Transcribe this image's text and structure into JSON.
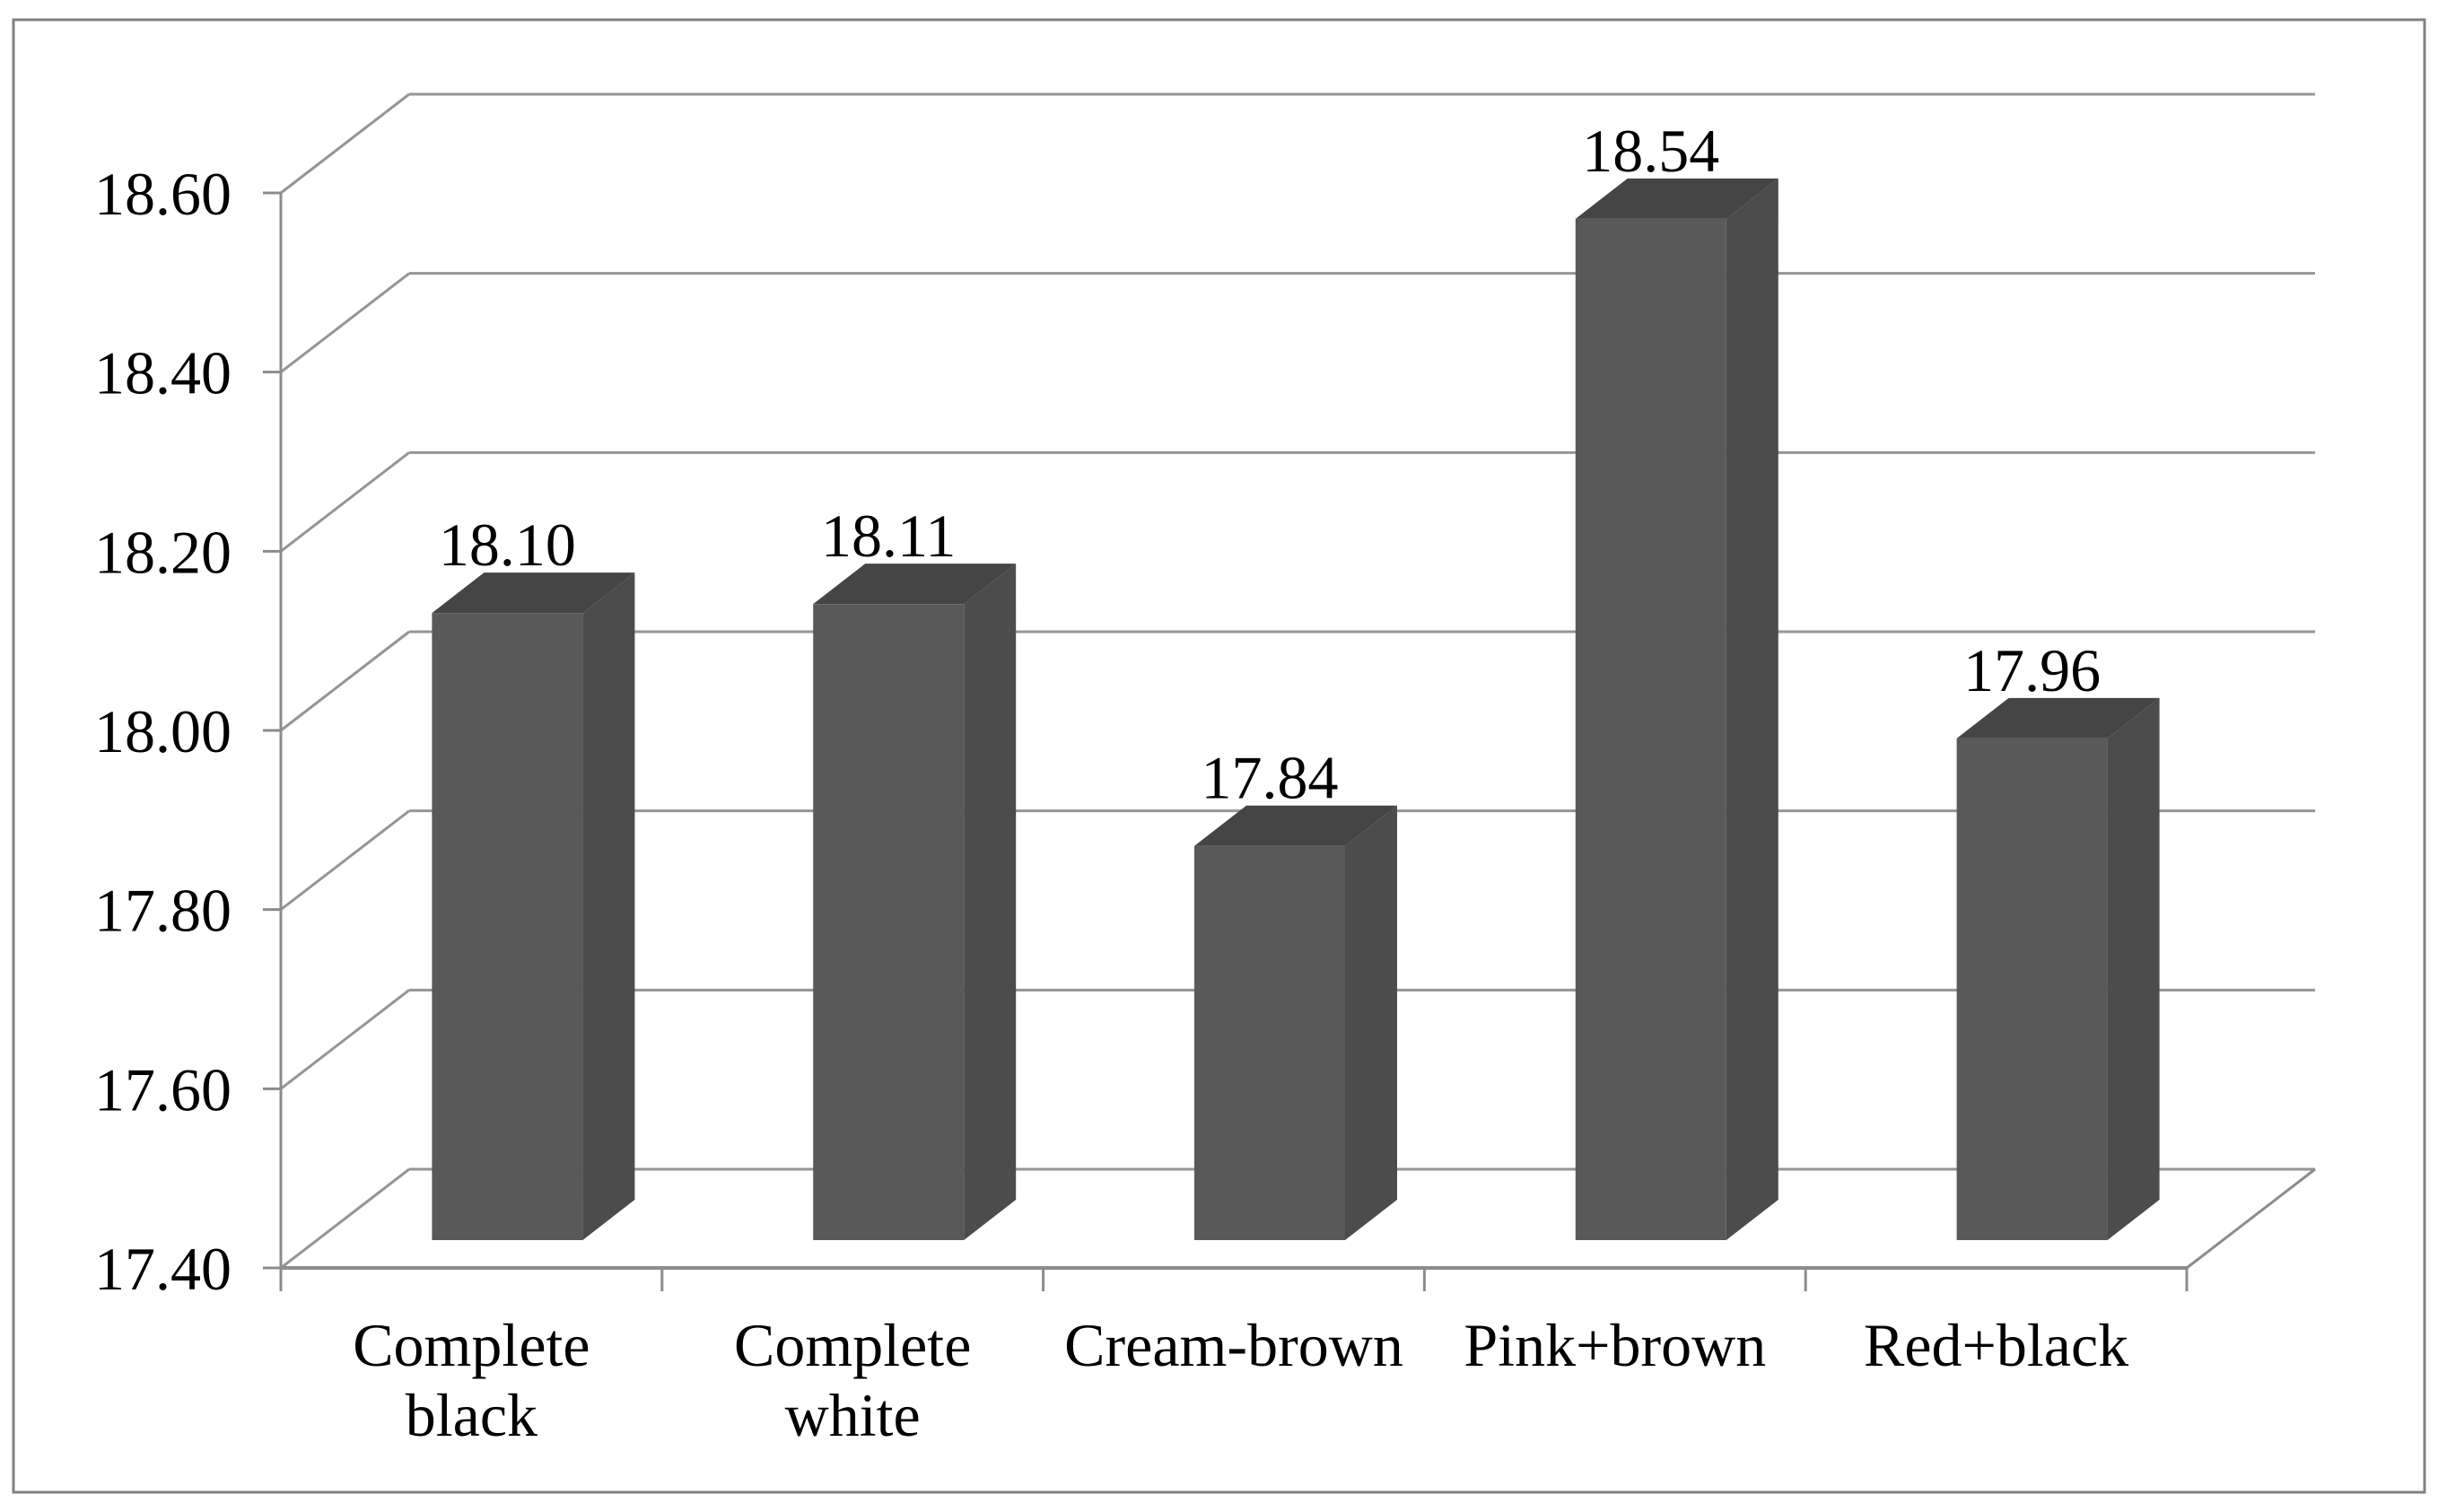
{
  "figure": {
    "background": "#ffffff",
    "border_color": "#808080"
  },
  "chart_data": {
    "type": "bar",
    "subtype": "3d-column",
    "title": "",
    "xlabel": "",
    "ylabel": "",
    "categories": [
      "Complete black",
      "Complete white",
      "Cream-brown",
      "Pink+brown",
      "Red+black"
    ],
    "category_tick_lines": [
      [
        "Complete",
        "black"
      ],
      [
        "Complete",
        "white"
      ],
      [
        "Cream-brown"
      ],
      [
        "Pink+brown"
      ],
      [
        "Red+black"
      ]
    ],
    "series": [
      {
        "name": "",
        "values": [
          18.1,
          18.11,
          17.84,
          18.54,
          17.96
        ],
        "data_labels": [
          "18.10",
          "18.11",
          "17.84",
          "18.54",
          "17.96"
        ]
      }
    ],
    "ylim": [
      17.4,
      18.6
    ],
    "ytick_step": 0.2,
    "ytick_labels": [
      "17.40",
      "17.60",
      "17.80",
      "18.00",
      "18.20",
      "18.40",
      "18.60"
    ],
    "grid": true,
    "legend": false,
    "colors": {
      "bar_front": "#595959",
      "bar_side": "#4c4c4c",
      "bar_top": "#454545",
      "gridline": "#959595",
      "axis": "#8c8c8c",
      "frame": "#808080",
      "label_text": "#000000",
      "background": "#ffffff"
    }
  }
}
